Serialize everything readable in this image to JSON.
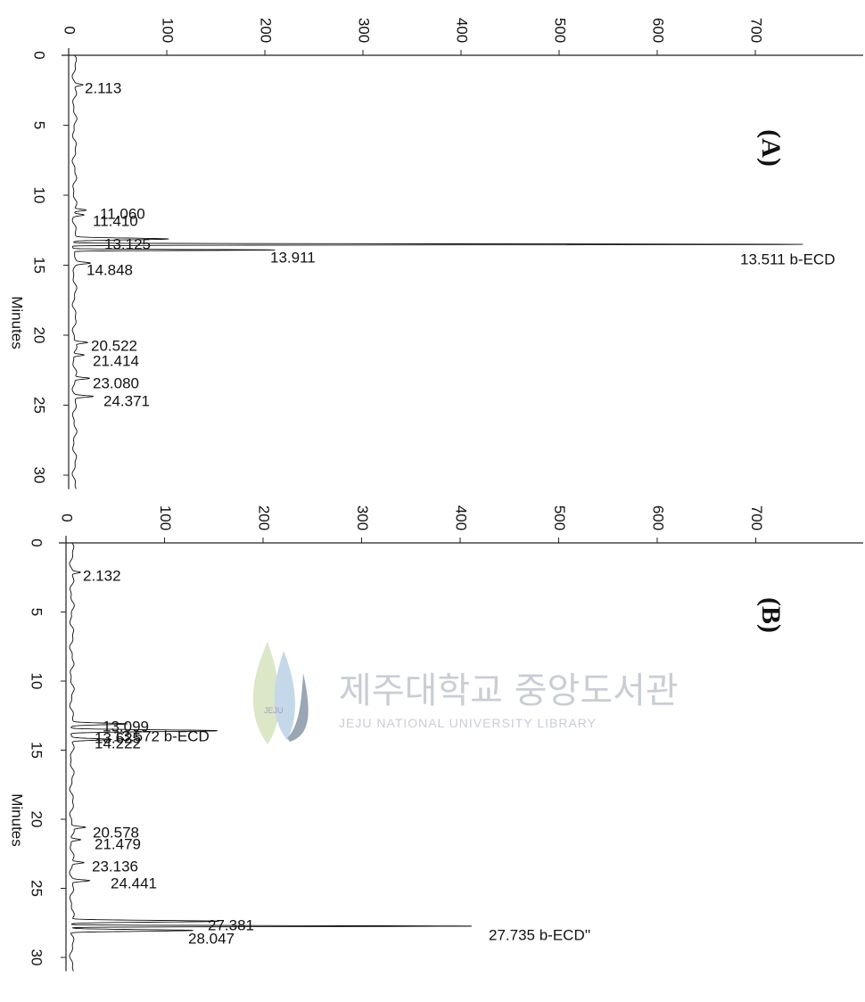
{
  "chart_data": [
    {
      "type": "line",
      "panel": "(A)",
      "ylabel": "Minutes",
      "x_ticks": [
        "0",
        "100",
        "200",
        "300",
        "400",
        "500",
        "600",
        "700"
      ],
      "y_ticks": [
        "0",
        "5",
        "10",
        "15",
        "20",
        "25",
        "30"
      ],
      "xlim": [
        0,
        800
      ],
      "ylim": [
        0,
        31
      ],
      "peaks": [
        {
          "label": "2.113",
          "rt": 2.113,
          "height": 8
        },
        {
          "label": "11.060",
          "rt": 11.06,
          "height": 12
        },
        {
          "label": "11.410",
          "rt": 11.41,
          "height": 10
        },
        {
          "label": "13.125",
          "rt": 13.125,
          "height": 95
        },
        {
          "label": "13.511 b-ECD",
          "rt": 13.511,
          "height": 745
        },
        {
          "label": "13.911",
          "rt": 13.911,
          "height": 205
        },
        {
          "label": "14.848",
          "rt": 14.848,
          "height": 14
        },
        {
          "label": "20.522",
          "rt": 20.522,
          "height": 13
        },
        {
          "label": "21.414",
          "rt": 21.414,
          "height": 11
        },
        {
          "label": "23.080",
          "rt": 23.08,
          "height": 15
        },
        {
          "label": "24.371",
          "rt": 24.371,
          "height": 18
        }
      ]
    },
    {
      "type": "line",
      "panel": "(B)",
      "ylabel": "Minutes",
      "x_ticks": [
        "0",
        "100",
        "200",
        "300",
        "400",
        "500",
        "600",
        "700"
      ],
      "y_ticks": [
        "0",
        "5",
        "10",
        "15",
        "20",
        "25",
        "30"
      ],
      "xlim": [
        0,
        800
      ],
      "ylim": [
        0,
        31
      ],
      "peaks": [
        {
          "label": "2.132",
          "rt": 2.132,
          "height": 8
        },
        {
          "label": "13.099",
          "rt": 13.099,
          "height": 55
        },
        {
          "label": "13.572 b-ECD",
          "rt": 13.572,
          "height": 95
        },
        {
          "label": "13.625",
          "rt": 13.625,
          "height": 70
        },
        {
          "label": "14.222",
          "rt": 14.222,
          "height": 40
        },
        {
          "label": "20.578",
          "rt": 20.578,
          "height": 13
        },
        {
          "label": "21.479",
          "rt": 21.479,
          "height": 10
        },
        {
          "label": "23.136",
          "rt": 23.136,
          "height": 12
        },
        {
          "label": "24.441",
          "rt": 24.441,
          "height": 17
        },
        {
          "label": "27.381",
          "rt": 27.381,
          "height": 150
        },
        {
          "label": "27.735 b-ECD''",
          "rt": 27.735,
          "height": 410
        },
        {
          "label": "28.047",
          "rt": 28.047,
          "height": 125
        }
      ]
    }
  ],
  "watermark": {
    "title": "제주대학교 중앙도서관",
    "subtitle": "JEJU NATIONAL UNIVERSITY LIBRARY",
    "emblem_text": "JEJU"
  },
  "colors": {
    "trace": "#111111",
    "axis": "#222222",
    "watermark": "#c9cdd4",
    "watermark_accent": "#9aa6b4"
  }
}
